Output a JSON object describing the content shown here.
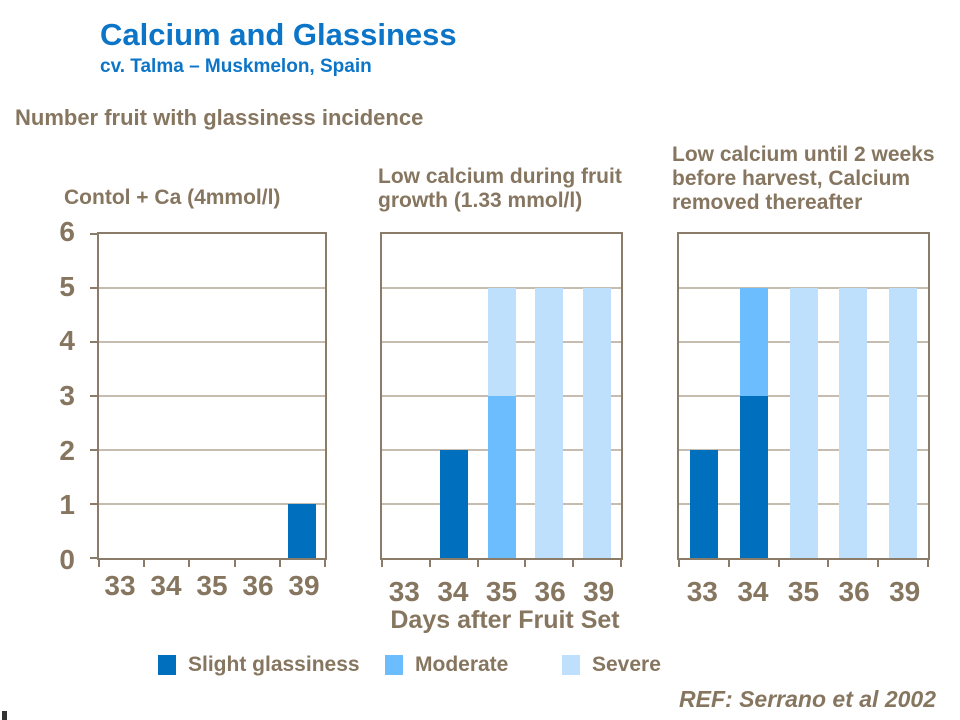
{
  "page": {
    "title": "Calcium and Glassiness",
    "subtitle": "cv. Talma – Muskmelon, Spain",
    "heading": "Number fruit with glassiness incidence",
    "reference": "REF: Serrano et al 2002"
  },
  "colors": {
    "title_blue": "#0D75C8",
    "text_brown": "#867660",
    "axis_line": "#8B7B69",
    "gridline": "#C7BCB0",
    "slight_glassiness": "#0070BE",
    "moderate": "#6CBDFD",
    "severe": "#BFE0FC"
  },
  "legend": [
    {
      "label": "Slight glassiness",
      "color": "slight_glassiness"
    },
    {
      "label": "Moderate",
      "color": "moderate"
    },
    {
      "label": "Severe",
      "color": "severe"
    }
  ],
  "chart_data": {
    "type": "bar",
    "stacked": true,
    "categories": [
      "33",
      "34",
      "35",
      "36",
      "39"
    ],
    "xlabel": "Days after Fruit Set",
    "ylabel": "",
    "ylim": [
      0,
      6
    ],
    "yticks": [
      0,
      1,
      2,
      3,
      4,
      5,
      6
    ],
    "grid": true,
    "legend_position": "bottom",
    "panels": [
      {
        "title": "Contol + Ca (4mmol/l)",
        "show_y_axis_labels": true,
        "series": [
          {
            "name": "Slight glassiness",
            "color": "slight_glassiness",
            "values": [
              0,
              0,
              0,
              0,
              1
            ]
          },
          {
            "name": "Moderate",
            "color": "moderate",
            "values": [
              0,
              0,
              0,
              0,
              0
            ]
          },
          {
            "name": "Severe",
            "color": "severe",
            "values": [
              0,
              0,
              0,
              0,
              0
            ]
          }
        ]
      },
      {
        "title": "Low calcium during fruit growth (1.33 mmol/l)",
        "show_y_axis_labels": false,
        "series": [
          {
            "name": "Slight glassiness",
            "color": "slight_glassiness",
            "values": [
              0,
              2,
              0,
              0,
              0
            ]
          },
          {
            "name": "Moderate",
            "color": "moderate",
            "values": [
              0,
              0,
              3,
              0,
              0
            ]
          },
          {
            "name": "Severe",
            "color": "severe",
            "values": [
              0,
              0,
              2,
              5,
              5
            ]
          }
        ]
      },
      {
        "title": "Low calcium until 2 weeks before harvest, Calcium removed thereafter",
        "show_y_axis_labels": false,
        "series": [
          {
            "name": "Slight glassiness",
            "color": "slight_glassiness",
            "values": [
              2,
              3,
              0,
              0,
              0
            ]
          },
          {
            "name": "Moderate",
            "color": "moderate",
            "values": [
              0,
              2,
              0,
              0,
              0
            ]
          },
          {
            "name": "Severe",
            "color": "severe",
            "values": [
              0,
              0,
              5,
              5,
              5
            ]
          }
        ]
      }
    ]
  }
}
